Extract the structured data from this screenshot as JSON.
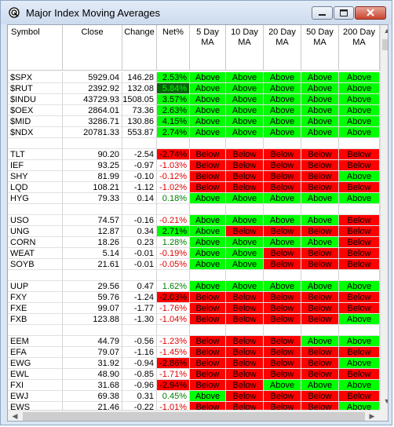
{
  "window": {
    "title": "Major Index Moving Averages",
    "icon": "app-icon",
    "buttons": [
      "minimize-icon",
      "maximize-icon",
      "close-icon"
    ]
  },
  "columns": [
    "Symbol",
    "Close",
    "Change",
    "Net%",
    "5 Day\nMA",
    "10 Day\nMA",
    "20 Day\nMA",
    "50 Day\nMA",
    "200 Day\nMA"
  ],
  "colors": {
    "above": "#00ff00",
    "below": "#ff0000",
    "strong_up": "#006400",
    "positive_text": "#008000",
    "negative_text": "#e00000"
  },
  "groups": [
    [
      {
        "symbol": "$SPX",
        "close": "5929.04",
        "change": "146.28",
        "net": "2.53%",
        "net_style": "bgg",
        "ma": [
          "Above",
          "Above",
          "Above",
          "Above",
          "Above"
        ]
      },
      {
        "symbol": "$RUT",
        "close": "2392.92",
        "change": "132.08",
        "net": "5.84%",
        "net_style": "bgdk",
        "ma": [
          "Above",
          "Above",
          "Above",
          "Above",
          "Above"
        ]
      },
      {
        "symbol": "$INDU",
        "close": "43729.93",
        "change": "1508.05",
        "net": "3.57%",
        "net_style": "bgg",
        "ma": [
          "Above",
          "Above",
          "Above",
          "Above",
          "Above"
        ]
      },
      {
        "symbol": "$OEX",
        "close": "2864.01",
        "change": "73.36",
        "net": "2.63%",
        "net_style": "bgg",
        "ma": [
          "Above",
          "Above",
          "Above",
          "Above",
          "Above"
        ]
      },
      {
        "symbol": "$MID",
        "close": "3286.71",
        "change": "130.86",
        "net": "4.15%",
        "net_style": "bgg",
        "ma": [
          "Above",
          "Above",
          "Above",
          "Above",
          "Above"
        ]
      },
      {
        "symbol": "$NDX",
        "close": "20781.33",
        "change": "553.87",
        "net": "2.74%",
        "net_style": "bgg",
        "ma": [
          "Above",
          "Above",
          "Above",
          "Above",
          "Above"
        ]
      }
    ],
    [
      {
        "symbol": "TLT",
        "close": "90.20",
        "change": "-2.54",
        "net": "-2.74%",
        "net_style": "bgr",
        "ma": [
          "Below",
          "Below",
          "Below",
          "Below",
          "Below"
        ]
      },
      {
        "symbol": "IEF",
        "close": "93.25",
        "change": "-0.97",
        "net": "-1.03%",
        "net_style": "neg",
        "ma": [
          "Below",
          "Below",
          "Below",
          "Below",
          "Below"
        ]
      },
      {
        "symbol": "SHY",
        "close": "81.99",
        "change": "-0.10",
        "net": "-0.12%",
        "net_style": "neg",
        "ma": [
          "Below",
          "Below",
          "Below",
          "Below",
          "Above"
        ]
      },
      {
        "symbol": "LQD",
        "close": "108.21",
        "change": "-1.12",
        "net": "-1.02%",
        "net_style": "neg",
        "ma": [
          "Below",
          "Below",
          "Below",
          "Below",
          "Below"
        ]
      },
      {
        "symbol": "HYG",
        "close": "79.33",
        "change": "0.14",
        "net": "0.18%",
        "net_style": "pos",
        "ma": [
          "Above",
          "Above",
          "Above",
          "Above",
          "Above"
        ]
      }
    ],
    [
      {
        "symbol": "USO",
        "close": "74.57",
        "change": "-0.16",
        "net": "-0.21%",
        "net_style": "neg",
        "ma": [
          "Above",
          "Above",
          "Above",
          "Above",
          "Below"
        ]
      },
      {
        "symbol": "UNG",
        "close": "12.87",
        "change": "0.34",
        "net": "2.71%",
        "net_style": "bgg",
        "ma": [
          "Above",
          "Below",
          "Below",
          "Below",
          "Below"
        ]
      },
      {
        "symbol": "CORN",
        "close": "18.26",
        "change": "0.23",
        "net": "1.28%",
        "net_style": "pos",
        "ma": [
          "Above",
          "Above",
          "Above",
          "Above",
          "Below"
        ]
      },
      {
        "symbol": "WEAT",
        "close": "5.14",
        "change": "-0.01",
        "net": "-0.19%",
        "net_style": "neg",
        "ma": [
          "Above",
          "Above",
          "Below",
          "Below",
          "Below"
        ]
      },
      {
        "symbol": "SOYB",
        "close": "21.61",
        "change": "-0.01",
        "net": "-0.05%",
        "net_style": "neg",
        "ma": [
          "Above",
          "Above",
          "Below",
          "Below",
          "Below"
        ]
      }
    ],
    [
      {
        "symbol": "UUP",
        "close": "29.56",
        "change": "0.47",
        "net": "1.62%",
        "net_style": "pos",
        "ma": [
          "Above",
          "Above",
          "Above",
          "Above",
          "Above"
        ]
      },
      {
        "symbol": "FXY",
        "close": "59.76",
        "change": "-1.24",
        "net": "-2.03%",
        "net_style": "bgr",
        "ma": [
          "Below",
          "Below",
          "Below",
          "Below",
          "Below"
        ]
      },
      {
        "symbol": "FXE",
        "close": "99.07",
        "change": "-1.77",
        "net": "-1.76%",
        "net_style": "neg",
        "ma": [
          "Below",
          "Below",
          "Below",
          "Below",
          "Below"
        ]
      },
      {
        "symbol": "FXB",
        "close": "123.88",
        "change": "-1.30",
        "net": "-1.04%",
        "net_style": "neg",
        "ma": [
          "Below",
          "Below",
          "Below",
          "Below",
          "Above"
        ]
      }
    ],
    [
      {
        "symbol": "EEM",
        "close": "44.79",
        "change": "-0.56",
        "net": "-1.23%",
        "net_style": "neg",
        "ma": [
          "Below",
          "Below",
          "Below",
          "Above",
          "Above"
        ]
      },
      {
        "symbol": "EFA",
        "close": "79.07",
        "change": "-1.16",
        "net": "-1.45%",
        "net_style": "neg",
        "ma": [
          "Below",
          "Below",
          "Below",
          "Below",
          "Below"
        ]
      },
      {
        "symbol": "EWG",
        "close": "31.92",
        "change": "-0.94",
        "net": "-2.86%",
        "net_style": "bgr",
        "ma": [
          "Below",
          "Below",
          "Below",
          "Below",
          "Above"
        ]
      },
      {
        "symbol": "EWL",
        "close": "48.90",
        "change": "-0.85",
        "net": "-1.71%",
        "net_style": "neg",
        "ma": [
          "Below",
          "Below",
          "Below",
          "Below",
          "Below"
        ]
      },
      {
        "symbol": "FXI",
        "close": "31.68",
        "change": "-0.96",
        "net": "-2.94%",
        "net_style": "bgr",
        "ma": [
          "Below",
          "Below",
          "Above",
          "Above",
          "Above"
        ]
      },
      {
        "symbol": "EWJ",
        "close": "69.38",
        "change": "0.31",
        "net": "0.45%",
        "net_style": "pos",
        "ma": [
          "Above",
          "Below",
          "Below",
          "Below",
          "Below"
        ]
      },
      {
        "symbol": "EWS",
        "close": "21.46",
        "change": "-0.22",
        "net": "-1.01%",
        "net_style": "neg",
        "ma": [
          "Below",
          "Below",
          "Below",
          "Below",
          "Above"
        ]
      }
    ]
  ]
}
